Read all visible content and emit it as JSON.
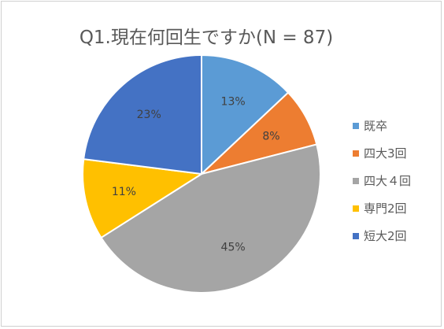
{
  "colors": {
    "background": "#ffffff",
    "border": "#d0d0d0",
    "text": "#595959",
    "slice_separator": "#ffffff"
  },
  "chart_data": {
    "type": "pie",
    "title": "Q1.現在何回生ですか(N = 87)",
    "categories": [
      "既卒",
      "四大3回",
      "四大４回",
      "専門2回",
      "短大2回"
    ],
    "values": [
      13,
      8,
      45,
      11,
      23
    ],
    "data_labels": [
      "13%",
      "8%",
      "45%",
      "11%",
      "23%"
    ],
    "colors": [
      "#5b9bd5",
      "#ed7d31",
      "#a5a5a5",
      "#ffc000",
      "#4472c4"
    ],
    "start_angle_deg": 0,
    "direction": "clockwise",
    "legend_position": "right"
  }
}
